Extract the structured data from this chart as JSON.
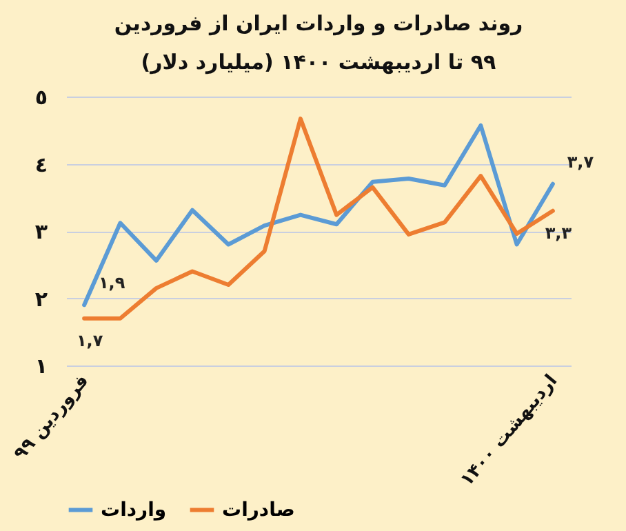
{
  "chart_data": {
    "type": "line",
    "title": "روند صادرات و واردات ایران از فروردین\n۹۹ تا اردیبهشت ۱۴۰۰ (میلیارد دلار)",
    "categories": [
      "فروردین ۹۹",
      null,
      null,
      null,
      null,
      null,
      null,
      null,
      null,
      null,
      null,
      null,
      null,
      "اردیبهشت ۱۴۰۰"
    ],
    "series": [
      {
        "name": "واردات",
        "color": "#5b9bd5",
        "values": [
          1.9,
          3.12,
          2.56,
          3.31,
          2.8,
          3.08,
          3.24,
          3.1,
          3.73,
          3.78,
          3.68,
          4.57,
          2.8,
          3.7
        ],
        "value_labels": [
          "۱,۹",
          null,
          null,
          null,
          null,
          null,
          null,
          null,
          null,
          null,
          null,
          null,
          null,
          "۳,۷"
        ]
      },
      {
        "name": "صادرات",
        "color": "#ed7d31",
        "values": [
          1.7,
          1.7,
          2.15,
          2.4,
          2.2,
          2.7,
          4.67,
          3.24,
          3.65,
          2.95,
          3.13,
          3.82,
          2.96,
          3.3
        ],
        "value_labels": [
          "۱,۷",
          null,
          null,
          null,
          null,
          null,
          null,
          null,
          null,
          null,
          null,
          null,
          null,
          "۳,۳"
        ]
      }
    ],
    "ylim": [
      1,
      5
    ],
    "yticks": [
      {
        "value": 1,
        "label": "١"
      },
      {
        "value": 2,
        "label": "٢"
      },
      {
        "value": 3,
        "label": "٣"
      },
      {
        "value": 4,
        "label": "٤"
      },
      {
        "value": 5,
        "label": "٥"
      }
    ],
    "grid": "y",
    "legend": "bottom",
    "marker": "none",
    "line_style": "solid"
  }
}
